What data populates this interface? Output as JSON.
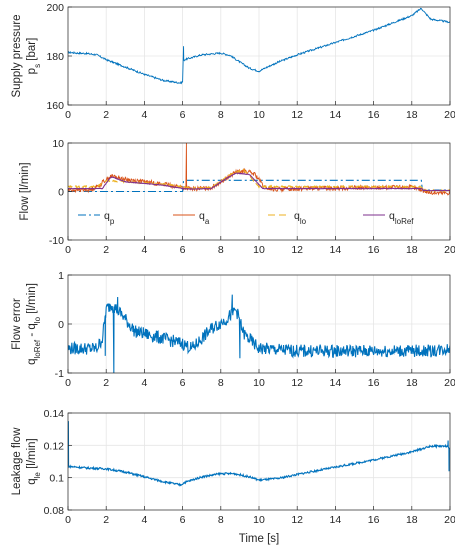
{
  "colors": {
    "blue": "#0072BD",
    "red": "#D95319",
    "orange": "#EDB120",
    "purple": "#7E2F8E",
    "grid": "#e6e6e6",
    "axis": "#262626"
  },
  "xlabel": {
    "text": "Time [s]"
  },
  "chart_data": [
    {
      "type": "line",
      "id": "supply-pressure",
      "ylabel_lines": [
        [
          "Supply pressure"
        ],
        [
          "p",
          "s",
          " [bar]"
        ]
      ],
      "xlim": [
        0,
        20
      ],
      "ylim": [
        160,
        200
      ],
      "xticks": [
        0,
        2,
        4,
        6,
        8,
        10,
        12,
        14,
        16,
        18,
        20
      ],
      "yticks": [
        160,
        180,
        200
      ],
      "grid": true,
      "series": [
        {
          "color": "blue",
          "style": "solid",
          "noise": 0.35,
          "spikes": [
            [
              6.05,
              184
            ]
          ],
          "points": [
            [
              0,
              181.5
            ],
            [
              0.5,
              181.2
            ],
            [
              1,
              181.0
            ],
            [
              1.5,
              180.5
            ],
            [
              2,
              178.5
            ],
            [
              3,
              175.5
            ],
            [
              4,
              172.5
            ],
            [
              5,
              170.0
            ],
            [
              5.9,
              169.0
            ],
            [
              6.0,
              169.5
            ],
            [
              6.02,
              178
            ],
            [
              6.1,
              178.5
            ],
            [
              7,
              180.5
            ],
            [
              8,
              181.2
            ],
            [
              8.5,
              180.2
            ],
            [
              9,
              177.5
            ],
            [
              9.5,
              175.0
            ],
            [
              10,
              173.8
            ],
            [
              10.3,
              175.0
            ],
            [
              11,
              177.5
            ],
            [
              12,
              180.5
            ],
            [
              14,
              185.5
            ],
            [
              16,
              190.5
            ],
            [
              18,
              196.5
            ],
            [
              18.5,
              199.5
            ],
            [
              18.7,
              197.5
            ],
            [
              19,
              195.0
            ],
            [
              20,
              193.8
            ]
          ]
        }
      ]
    },
    {
      "type": "line",
      "id": "flow",
      "ylabel_lines": [
        [
          "Flow [l/min]"
        ]
      ],
      "xlim": [
        0,
        20
      ],
      "ylim": [
        -10,
        10
      ],
      "xticks": [
        0,
        2,
        4,
        6,
        8,
        10,
        12,
        14,
        16,
        18,
        20
      ],
      "yticks": [
        -10,
        0,
        10
      ],
      "grid": true,
      "legend": {
        "location": "lower-left",
        "columns": 4
      },
      "series": [
        {
          "name": [
            "q",
            "p",
            ""
          ],
          "color": "blue",
          "style": "dashdot",
          "noise": 0,
          "points": [
            [
              0,
              0
            ],
            [
              6.0,
              0
            ],
            [
              6.05,
              2.3
            ],
            [
              18.5,
              2.3
            ],
            [
              18.55,
              0.3
            ],
            [
              20,
              0.3
            ]
          ]
        },
        {
          "name": [
            "q",
            "a",
            ""
          ],
          "color": "red",
          "style": "solid",
          "noise": 0.45,
          "spikes": [
            [
              6.2,
              10
            ],
            [
              2.3,
              3.5
            ]
          ],
          "points": [
            [
              0,
              0.3
            ],
            [
              1.2,
              0.4
            ],
            [
              1.6,
              1.2
            ],
            [
              2.0,
              2.5
            ],
            [
              2.3,
              3.2
            ],
            [
              3,
              2.5
            ],
            [
              4,
              2.0
            ],
            [
              5,
              1.5
            ],
            [
              5.8,
              1.0
            ],
            [
              6.0,
              0.8
            ],
            [
              6.5,
              0.5
            ],
            [
              7.5,
              0.8
            ],
            [
              8.2,
              2.5
            ],
            [
              8.8,
              4.0
            ],
            [
              9.3,
              4.2
            ],
            [
              9.8,
              3.5
            ],
            [
              10.3,
              0.8
            ],
            [
              10.8,
              0.4
            ],
            [
              12,
              0.6
            ],
            [
              14,
              0.7
            ],
            [
              16,
              0.8
            ],
            [
              18,
              0.9
            ],
            [
              18.6,
              0.2
            ],
            [
              19,
              -0.3
            ],
            [
              20,
              -0.3
            ]
          ]
        },
        {
          "name": [
            "q",
            "lo",
            ""
          ],
          "color": "orange",
          "style": "dashed",
          "noise": 0.15,
          "points": [
            [
              0,
              1.0
            ],
            [
              1.5,
              1.0
            ],
            [
              2.0,
              2.2
            ],
            [
              3,
              2.0
            ],
            [
              5,
              1.5
            ],
            [
              6.0,
              1.0
            ],
            [
              6.5,
              0.6
            ],
            [
              7.5,
              0.8
            ],
            [
              8.5,
              3.5
            ],
            [
              9.2,
              4.5
            ],
            [
              10.0,
              1.0
            ],
            [
              10.5,
              1.0
            ],
            [
              18.5,
              1.0
            ],
            [
              18.6,
              0.2
            ],
            [
              20,
              0.2
            ]
          ]
        },
        {
          "name": [
            "q",
            "loRef",
            ""
          ],
          "color": "purple",
          "style": "solid",
          "noise": 0.05,
          "points": [
            [
              0,
              0.6
            ],
            [
              1.8,
              0.6
            ],
            [
              2.2,
              2.8
            ],
            [
              2.3,
              3.0
            ],
            [
              3,
              2.0
            ],
            [
              5,
              1.3
            ],
            [
              6.0,
              0.6
            ],
            [
              6.5,
              0.5
            ],
            [
              7.5,
              0.6
            ],
            [
              8.2,
              2.5
            ],
            [
              8.8,
              3.8
            ],
            [
              9.5,
              3.5
            ],
            [
              10.2,
              0.6
            ],
            [
              18.5,
              0.6
            ],
            [
              18.6,
              0.2
            ],
            [
              20,
              0.2
            ]
          ]
        }
      ]
    },
    {
      "type": "line",
      "id": "flow-error",
      "ylabel_lines": [
        [
          "Flow error"
        ],
        [
          "q",
          "loRef",
          " - q",
          "lo",
          "  [l/min]"
        ]
      ],
      "xlim": [
        0,
        20
      ],
      "ylim": [
        -1,
        1
      ],
      "xticks": [
        0,
        2,
        4,
        6,
        8,
        10,
        12,
        14,
        16,
        18,
        20
      ],
      "yticks": [
        -1,
        0,
        1
      ],
      "grid": true,
      "series": [
        {
          "color": "blue",
          "style": "solid",
          "noise": 0.13,
          "spikes": [
            [
              1.95,
              -0.65
            ],
            [
              2.4,
              -1.0
            ],
            [
              2.6,
              0.55
            ],
            [
              8.6,
              0.6
            ],
            [
              9.0,
              -0.7
            ]
          ],
          "points": [
            [
              0,
              -0.5
            ],
            [
              1.5,
              -0.5
            ],
            [
              1.8,
              -0.3
            ],
            [
              2.0,
              0.3
            ],
            [
              2.3,
              0.4
            ],
            [
              2.8,
              0.2
            ],
            [
              3.5,
              -0.15
            ],
            [
              5,
              -0.3
            ],
            [
              6.0,
              -0.4
            ],
            [
              6.5,
              -0.5
            ],
            [
              7.5,
              -0.1
            ],
            [
              8.3,
              0.1
            ],
            [
              8.8,
              0.3
            ],
            [
              9.2,
              -0.2
            ],
            [
              10,
              -0.5
            ],
            [
              12,
              -0.55
            ],
            [
              16,
              -0.55
            ],
            [
              19,
              -0.55
            ],
            [
              20,
              -0.5
            ]
          ]
        }
      ]
    },
    {
      "type": "line",
      "id": "leakage-flow",
      "ylabel_lines": [
        [
          "Leakage flow"
        ],
        [
          "q",
          "le",
          "  [l/min]"
        ]
      ],
      "xlim": [
        0,
        20
      ],
      "ylim": [
        0.08,
        0.14
      ],
      "xticks": [
        0,
        2,
        4,
        6,
        8,
        10,
        12,
        14,
        16,
        18,
        20
      ],
      "yticks": [
        0.08,
        0.1,
        0.12,
        0.14
      ],
      "grid": true,
      "series": [
        {
          "color": "blue",
          "style": "solid",
          "noise": 0.0006,
          "spikes": [
            [
              0.02,
              0.135
            ],
            [
              19.9,
              0.123
            ],
            [
              19.95,
              0.104
            ]
          ],
          "points": [
            [
              0,
              0.107
            ],
            [
              1,
              0.106
            ],
            [
              2,
              0.1055
            ],
            [
              3,
              0.1035
            ],
            [
              4,
              0.1005
            ],
            [
              5,
              0.0975
            ],
            [
              5.9,
              0.0955
            ],
            [
              6.1,
              0.097
            ],
            [
              7,
              0.1005
            ],
            [
              8,
              0.1025
            ],
            [
              8.7,
              0.1025
            ],
            [
              9.5,
              0.1005
            ],
            [
              10,
              0.0985
            ],
            [
              11,
              0.0995
            ],
            [
              12,
              0.102
            ],
            [
              14,
              0.1065
            ],
            [
              16,
              0.111
            ],
            [
              18,
              0.116
            ],
            [
              19,
              0.1195
            ],
            [
              19.8,
              0.1195
            ],
            [
              20,
              0.118
            ]
          ]
        }
      ]
    }
  ]
}
